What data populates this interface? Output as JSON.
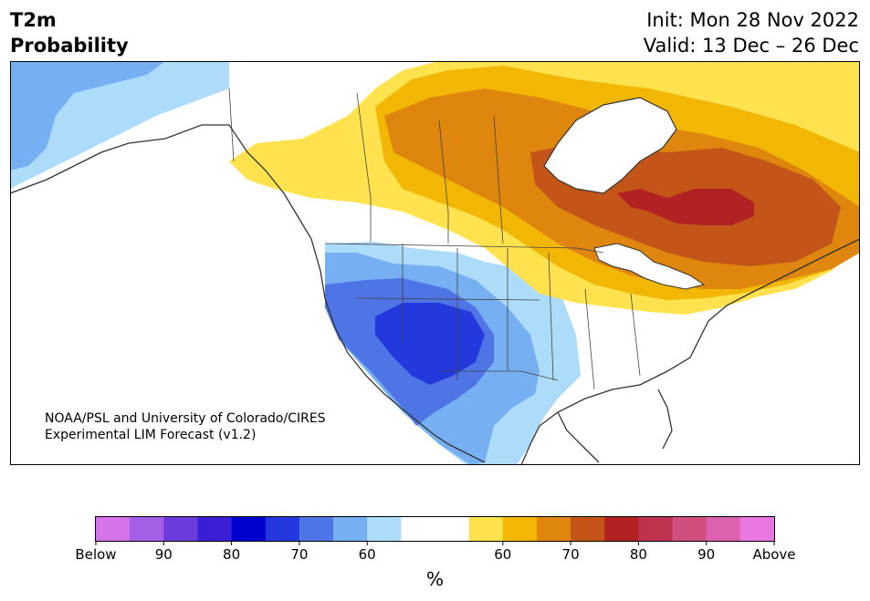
{
  "title": {
    "left_line1": "T2m",
    "left_line2": "Probability",
    "init": "Init: Mon 28 Nov 2022",
    "valid": "Valid: 13 Dec – 26 Dec"
  },
  "attribution": {
    "line1": "NOAA/PSL and University of Colorado/CIRES",
    "line2": "Experimental LIM Forecast (v1.2)"
  },
  "colorbar": {
    "unit": "%",
    "colors": [
      "#d573ea",
      "#a35de6",
      "#6b3bdb",
      "#3a1fd6",
      "#0000cf",
      "#2338dd",
      "#4f74e6",
      "#77b0f2",
      "#addcfa",
      "#ffffff",
      "#ffffff",
      "#ffe24d",
      "#f2b705",
      "#de860d",
      "#c45519",
      "#b22222",
      "#be3250",
      "#cf4f7f",
      "#dd62ae",
      "#e878e0"
    ],
    "tick_labels": [
      "Below",
      "90",
      "80",
      "70",
      "60",
      "60",
      "70",
      "80",
      "90",
      "Above"
    ]
  },
  "colors": {
    "below_60": "#addcfa",
    "below_70": "#77b0f2",
    "below_80": "#4f74e6",
    "below_90": "#2338dd",
    "above_60": "#ffe24d",
    "above_70": "#f2b705",
    "above_80": "#de860d",
    "above_90": "#c45519",
    "above_95": "#b22222",
    "coast": "#333333"
  }
}
